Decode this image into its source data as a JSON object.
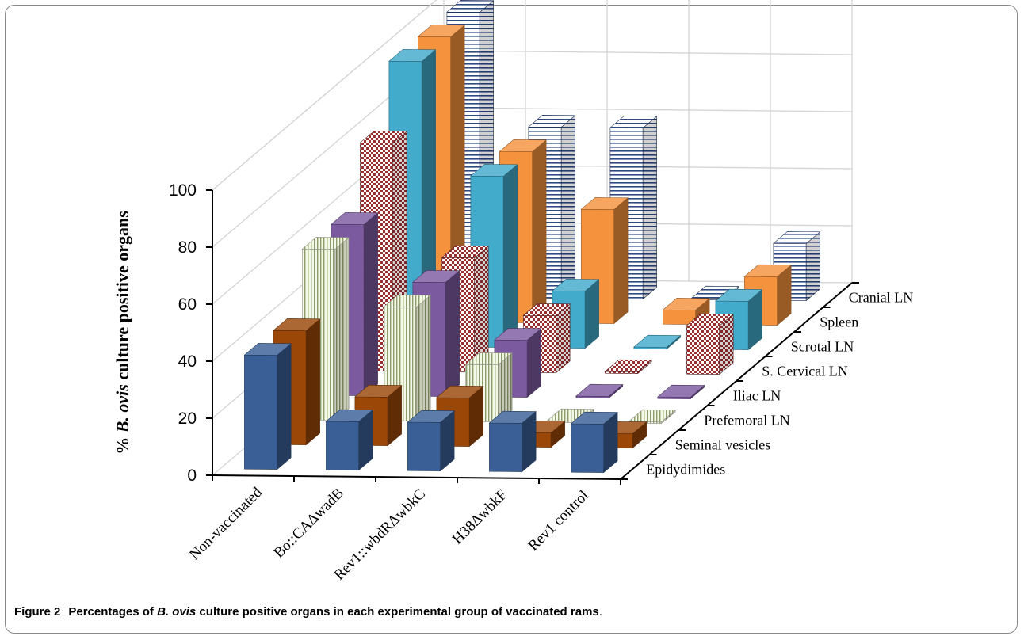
{
  "caption": {
    "number": "Figure 2",
    "text_before": "Percentages of ",
    "text_italic": "B. ovis",
    "text_after": " culture positive organs in each experimental group of vaccinated rams",
    "end": "."
  },
  "chart_data": {
    "type": "bar-3d",
    "ylabel_prefix": "% ",
    "ylabel_italic": "B. ovis",
    "ylabel_suffix": " culture positive organs",
    "ylim": [
      0,
      100
    ],
    "yticks": [
      "0",
      "20",
      "40",
      "60",
      "80",
      "100"
    ],
    "grid": true,
    "categories": [
      "Non-vaccinated",
      "Bo::CAΔwadB",
      "Rev1::wbdRΔwbkC",
      "H38ΔwbkF",
      "Rev1 control"
    ],
    "series": [
      {
        "name": "Epidydimides",
        "values": [
          40,
          17,
          17,
          17,
          17
        ],
        "color": "#3a5f96",
        "pattern": "solid"
      },
      {
        "name": "Seminal vesicles",
        "values": [
          40,
          17,
          17,
          5,
          5
        ],
        "color": "#9a4708",
        "pattern": "solid"
      },
      {
        "name": "Prefemoral LN",
        "values": [
          60,
          40,
          20,
          0,
          0
        ],
        "color": "#f4f8e6",
        "pattern": "vertical"
      },
      {
        "name": "Iliac LN",
        "values": [
          60,
          40,
          20,
          0,
          0
        ],
        "color": "#7c5aa0",
        "pattern": "solid"
      },
      {
        "name": "S. Cervical LN",
        "values": [
          80,
          40,
          20,
          0,
          17
        ],
        "color": "#8c2a2a",
        "pattern": "check"
      },
      {
        "name": "Scrotal LN",
        "values": [
          100,
          60,
          20,
          0,
          17
        ],
        "color": "#42aacb",
        "pattern": "solid"
      },
      {
        "name": "Spleen",
        "values": [
          100,
          60,
          40,
          5,
          17
        ],
        "color": "#f5923e",
        "pattern": "solid"
      },
      {
        "name": "Cranial LN",
        "values": [
          100,
          60,
          60,
          0,
          20
        ],
        "color": "#2d4a85",
        "pattern": "horizontal"
      }
    ]
  }
}
